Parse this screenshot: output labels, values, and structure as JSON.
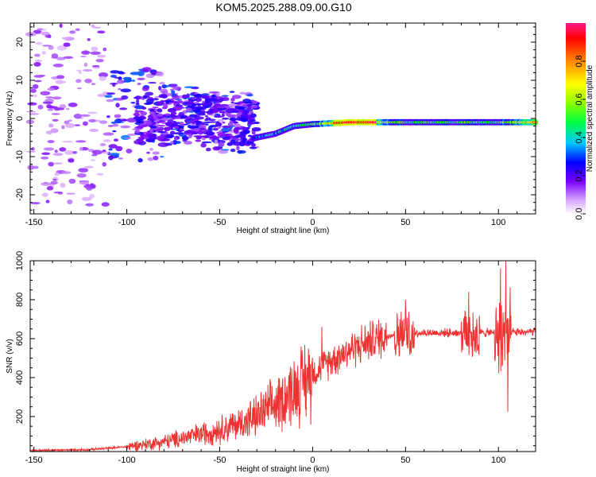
{
  "title": "KOM5.2025.288.09.00.G10",
  "chart_data": [
    {
      "type": "heatmap",
      "name": "spectrogram",
      "xlabel": "Height of straight line (km)",
      "ylabel": "Frequency (Hz)",
      "xlim": [
        -152,
        120
      ],
      "ylim": [
        -25,
        25
      ],
      "xticks": [
        -150,
        -100,
        -50,
        0,
        50,
        100
      ],
      "yticks": [
        -20,
        -10,
        0,
        10,
        20
      ],
      "colorbar": {
        "label": "Normalized spectral amplitude",
        "range": [
          0,
          1
        ],
        "ticks": [
          "0.0",
          "0.2",
          "0.4",
          "0.6",
          "0.8"
        ],
        "tick_values": [
          0,
          0.2,
          0.4,
          0.6,
          0.8
        ]
      },
      "main_track": [
        {
          "height_km": -30,
          "frequency_hz": -5,
          "amplitude": 0.3
        },
        {
          "height_km": -20,
          "frequency_hz": -4,
          "amplitude": 0.35
        },
        {
          "height_km": -10,
          "frequency_hz": -2,
          "amplitude": 0.45
        },
        {
          "height_km": 0,
          "frequency_hz": -1.5,
          "amplitude": 0.5
        },
        {
          "height_km": 20,
          "frequency_hz": -1,
          "amplitude": 0.95
        },
        {
          "height_km": 50,
          "frequency_hz": -1,
          "amplitude": 0.5
        },
        {
          "height_km": 80,
          "frequency_hz": -1,
          "amplitude": 0.5
        },
        {
          "height_km": 100,
          "frequency_hz": -1,
          "amplitude": 0.5
        },
        {
          "height_km": 120,
          "frequency_hz": -1,
          "amplitude": 0.8
        }
      ],
      "scatter_region": {
        "height_range_km": [
          -152,
          -30
        ],
        "frequency_range_hz": [
          -25,
          25
        ],
        "amplitude": "0.05-0.3"
      }
    },
    {
      "type": "line",
      "name": "snr",
      "xlabel": "Height of straight line (km)",
      "ylabel": "SNR (v/v)",
      "xlim": [
        -152,
        120
      ],
      "ylim": [
        20,
        1000
      ],
      "xticks": [
        -150,
        -100,
        -50,
        0,
        50,
        100
      ],
      "yticks": [
        200,
        400,
        600,
        800,
        1000
      ],
      "color": "#ee3333",
      "series_envelope": [
        {
          "x": -150,
          "y": 25
        },
        {
          "x": -120,
          "y": 30
        },
        {
          "x": -100,
          "y": 45
        },
        {
          "x": -80,
          "y": 70
        },
        {
          "x": -60,
          "y": 110
        },
        {
          "x": -40,
          "y": 160
        },
        {
          "x": -30,
          "y": 200
        },
        {
          "x": -20,
          "y": 260
        },
        {
          "x": -10,
          "y": 340
        },
        {
          "x": 0,
          "y": 420
        },
        {
          "x": 10,
          "y": 490
        },
        {
          "x": 20,
          "y": 545
        },
        {
          "x": 30,
          "y": 585
        },
        {
          "x": 40,
          "y": 615
        },
        {
          "x": 50,
          "y": 630
        },
        {
          "x": 60,
          "y": 630
        },
        {
          "x": 80,
          "y": 630
        },
        {
          "x": 100,
          "y": 630
        },
        {
          "x": 120,
          "y": 635
        }
      ],
      "notable_points": [
        {
          "x": 5,
          "y": 660
        },
        {
          "x": 50,
          "y": 800
        },
        {
          "x": 84,
          "y": 840
        },
        {
          "x": 101,
          "y": 960
        },
        {
          "x": 104,
          "y": 1000
        },
        {
          "x": 105,
          "y": 225
        }
      ]
    }
  ]
}
